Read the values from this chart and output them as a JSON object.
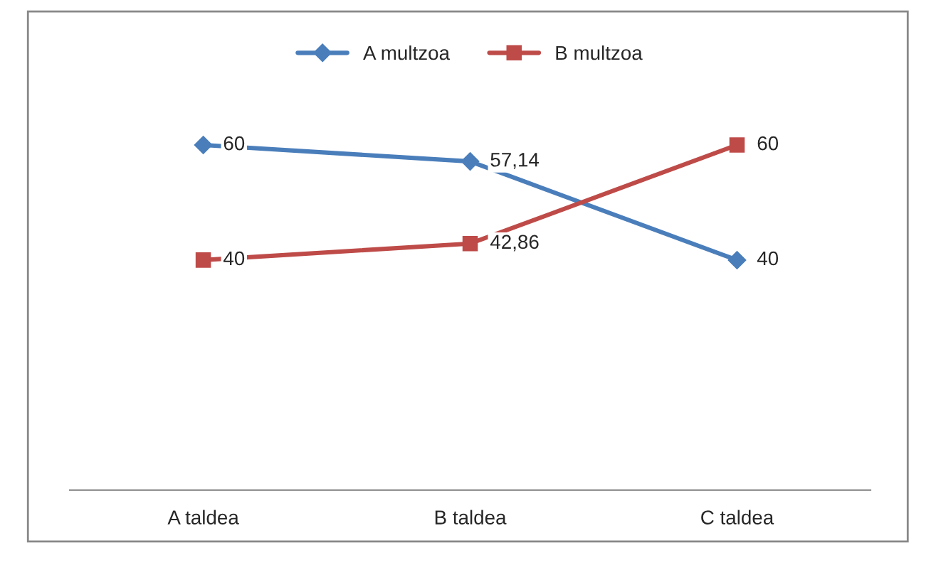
{
  "chart_data": {
    "type": "line",
    "categories": [
      "A taldea",
      "B taldea",
      "C taldea"
    ],
    "series": [
      {
        "name": "A multzoa",
        "color": "#4a7ebb",
        "marker": "diamond",
        "values": [
          60,
          57.14,
          40
        ],
        "value_labels": [
          "60",
          "57,14",
          "40"
        ]
      },
      {
        "name": "B multzoa",
        "color": "#be4b48",
        "marker": "square",
        "values": [
          40,
          42.86,
          60
        ],
        "value_labels": [
          "40",
          "42,86",
          "60"
        ]
      }
    ],
    "tick_labels": "x",
    "grid": false,
    "legend": "top"
  }
}
